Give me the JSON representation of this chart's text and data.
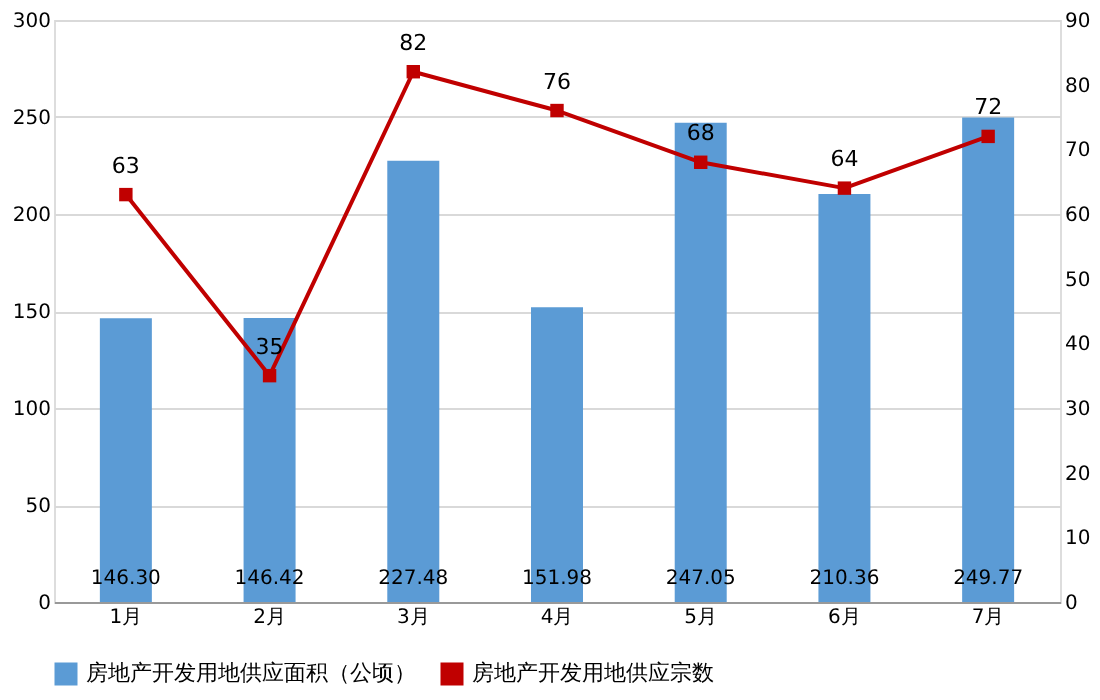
{
  "chart_data": {
    "type": "bar",
    "categories": [
      "1月",
      "2月",
      "3月",
      "4月",
      "5月",
      "6月",
      "7月"
    ],
    "series": [
      {
        "name": "房地产开发用地供应面积（公顷）",
        "color": "#5b9bd5",
        "values": [
          146.3,
          146.42,
          227.48,
          151.98,
          247.05,
          210.36,
          249.77
        ],
        "value_labels": [
          "146.30",
          "146.42",
          "227.48",
          "151.98",
          "247.05",
          "210.36",
          "249.77"
        ]
      },
      {
        "name": "房地产开发用地供应宗数",
        "type": "line",
        "axis": "y2",
        "color": "#c00000",
        "values": [
          63,
          35,
          82,
          76,
          68,
          64,
          72
        ],
        "value_labels": [
          "63",
          "35",
          "82",
          "76",
          "68",
          "64",
          "72"
        ]
      }
    ],
    "ylim": [
      0,
      300
    ],
    "yticks": [
      0,
      50,
      100,
      150,
      200,
      250,
      300
    ],
    "y2lim": [
      0,
      90
    ],
    "y2ticks": [
      0,
      10,
      20,
      30,
      40,
      50,
      60,
      70,
      80,
      90
    ],
    "grid": "y",
    "legend": "bottom",
    "marker": "square",
    "line_style": "solid"
  }
}
